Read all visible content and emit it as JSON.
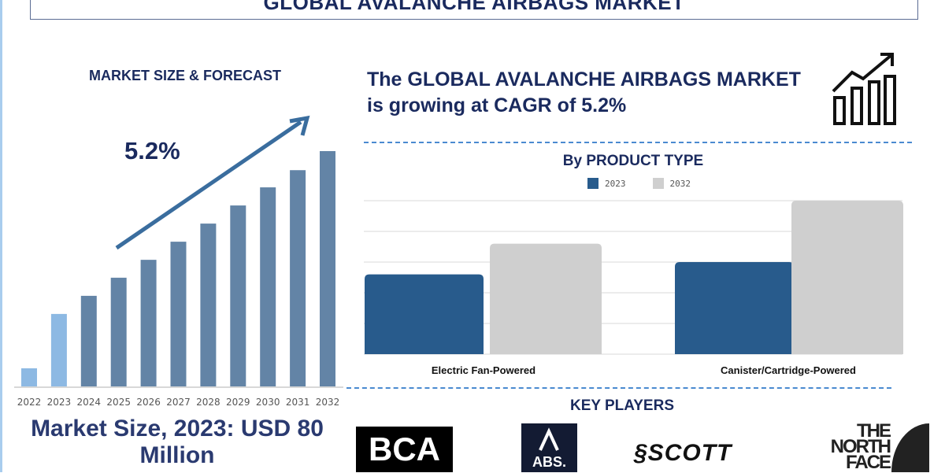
{
  "header": {
    "title": "GLOBAL AVALANCHE AIRBAGS MARKET"
  },
  "market_forecast": {
    "title": "MARKET SIZE & FORECAST",
    "cagr_label": "5.2%",
    "market_size_text": "Market Size, 2023: USD 80 Million"
  },
  "headline": "The GLOBAL AVALANCHE AIRBAGS MARKET is growing at CAGR of 5.2%",
  "icons": {
    "growth": "chart-growth-arrow-icon"
  },
  "key_players": {
    "title": "KEY PLAYERS",
    "logos": [
      "BCA",
      "ABS",
      "SCOTT",
      "THE NORTH FACE"
    ]
  },
  "colors": {
    "navy": "#1a2a5e",
    "bar_forecast": "#6384a6",
    "bar_highlight": "#8db9e3",
    "series_2023": "#285b8c",
    "series_2032": "#cfcfcf",
    "dash": "#4a8ad0"
  },
  "chart_data": [
    {
      "type": "bar",
      "title": "MARKET SIZE & FORECAST",
      "categories": [
        "2022",
        "2023",
        "2024",
        "2025",
        "2026",
        "2027",
        "2028",
        "2029",
        "2030",
        "2031",
        "2032"
      ],
      "values": [
        7.7,
        30.8,
        38.5,
        46.2,
        53.8,
        61.5,
        69.2,
        76.9,
        84.6,
        91.9,
        100
      ],
      "highlighted_categories": [
        "2022",
        "2023"
      ],
      "grid": false,
      "annotation": "5.2%"
    },
    {
      "type": "bar",
      "title": "By PRODUCT TYPE",
      "categories": [
        "Electric Fan-Powered",
        "Canister/Cartridge-Powered"
      ],
      "series": [
        {
          "name": "2023",
          "values": [
            2.6,
            3.0
          ]
        },
        {
          "name": "2032",
          "values": [
            3.6,
            5.0
          ]
        }
      ],
      "ylim": [
        0,
        5
      ],
      "grid": true,
      "legend": "top"
    }
  ]
}
